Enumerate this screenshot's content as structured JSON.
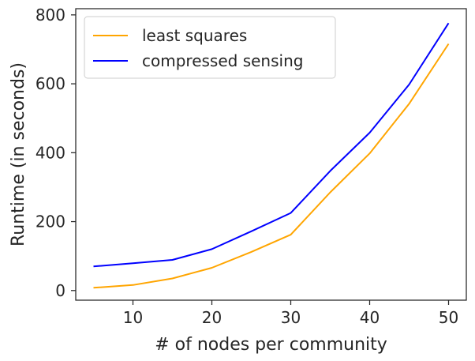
{
  "chart_data": {
    "type": "line",
    "title": "",
    "xlabel": "# of nodes per community",
    "ylabel": "Runtime (in seconds)",
    "x": [
      5,
      10,
      15,
      20,
      25,
      30,
      35,
      40,
      45,
      50
    ],
    "xlim": [
      2.75,
      52.25
    ],
    "ylim": [
      -28,
      818
    ],
    "xticks": [
      10,
      20,
      30,
      40,
      50
    ],
    "yticks": [
      0,
      200,
      400,
      600,
      800
    ],
    "grid": false,
    "legend_position": "top-left",
    "series": [
      {
        "name": "least squares",
        "color": "#FFA500",
        "values": [
          8,
          16,
          35,
          66,
          112,
          162,
          285,
          398,
          542,
          716
        ]
      },
      {
        "name": "compressed sensing",
        "color": "#0000FF",
        "values": [
          70,
          79,
          89,
          120,
          172,
          225,
          347,
          458,
          598,
          776
        ]
      }
    ]
  }
}
